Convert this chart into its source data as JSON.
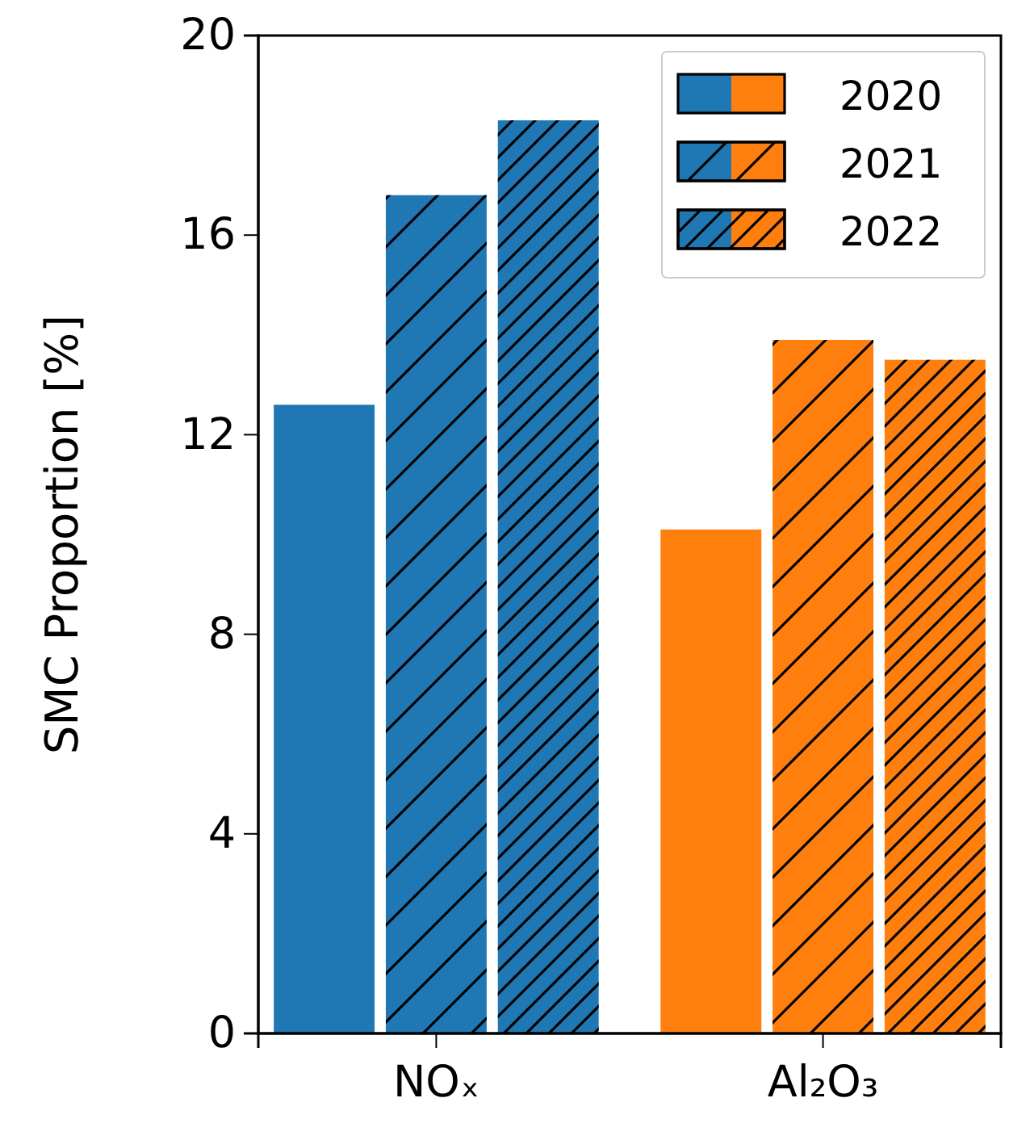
{
  "chart_data": {
    "type": "bar",
    "ylabel": "SMC Proportion [%]",
    "categories": [
      "NOₓ",
      "Al₂O₃"
    ],
    "series": [
      {
        "name": "2020",
        "colors": [
          "#1f77b4",
          "#ff7f0e"
        ],
        "values": [
          12.6,
          10.1
        ]
      },
      {
        "name": "2021",
        "colors": [
          "#1f77b4",
          "#ff7f0e"
        ],
        "values": [
          16.8,
          13.9
        ]
      },
      {
        "name": "2022",
        "colors": [
          "#1f77b4",
          "#ff7f0e"
        ],
        "values": [
          18.3,
          13.5
        ]
      }
    ],
    "ylim": [
      0,
      20
    ],
    "yticks": [
      0,
      4,
      8,
      12,
      16,
      20
    ],
    "legend": "top right",
    "grid": false
  }
}
